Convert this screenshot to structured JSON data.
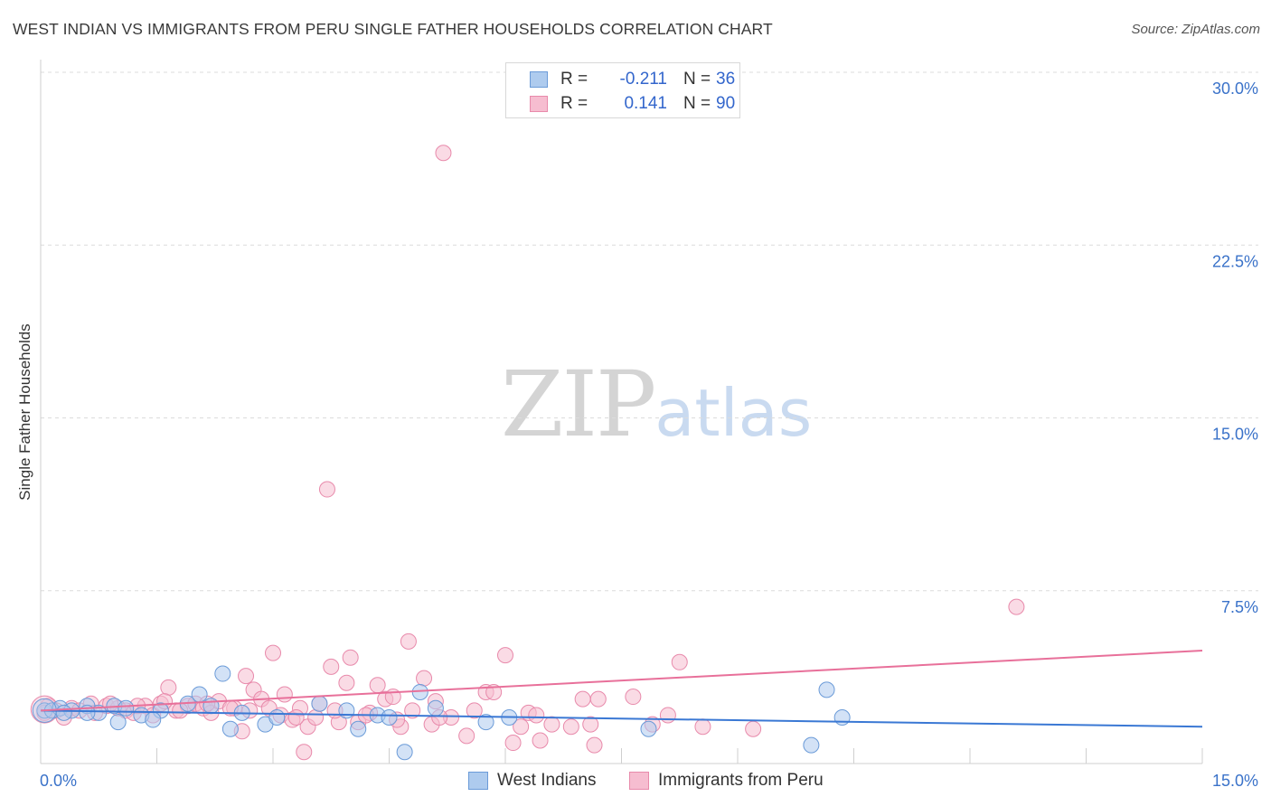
{
  "title": "WEST INDIAN VS IMMIGRANTS FROM PERU SINGLE FATHER HOUSEHOLDS CORRELATION CHART",
  "source": "Source: ZipAtlas.com",
  "watermark": {
    "zip": "ZIP",
    "atlas": "atlas"
  },
  "legend": {
    "rows": [
      {
        "r_label": "R =",
        "r_value": "-0.211",
        "n_label": "N =",
        "n_value": "36"
      },
      {
        "r_label": "R =",
        "r_value": "0.141",
        "n_label": "N =",
        "n_value": "90"
      }
    ]
  },
  "bottom_legend": [
    "West Indians",
    "Immigrants from Peru"
  ],
  "colors": {
    "blue_fill": "#aecbee",
    "blue_stroke": "#6b9bd8",
    "blue_line": "#3a78d4",
    "pink_fill": "#f6bdd0",
    "pink_stroke": "#e88aab",
    "pink_line": "#e8709a",
    "tick_label": "#3a72c9",
    "grid": "#dcdcdc"
  },
  "chart_data": {
    "type": "scatter",
    "title": "WEST INDIAN VS IMMIGRANTS FROM PERU SINGLE FATHER HOUSEHOLDS CORRELATION CHART",
    "xlabel": "",
    "ylabel": "Single Father Households",
    "xlim": [
      0,
      15
    ],
    "ylim": [
      0,
      30
    ],
    "x_tick_labels": [
      "0.0%",
      "15.0%"
    ],
    "y_ticks": [
      7.5,
      15,
      22.5,
      30
    ],
    "y_tick_labels": [
      "7.5%",
      "15.0%",
      "22.5%",
      "30.0%"
    ],
    "series": [
      {
        "name": "West Indians",
        "R": -0.211,
        "N": 36,
        "trend": {
          "x": [
            0,
            15
          ],
          "y": [
            2.3,
            1.6
          ]
        },
        "points": [
          [
            0.05,
            2.3
          ],
          [
            0.15,
            2.3
          ],
          [
            0.25,
            2.4
          ],
          [
            0.4,
            2.3
          ],
          [
            0.6,
            2.5
          ],
          [
            0.75,
            2.2
          ],
          [
            0.95,
            2.5
          ],
          [
            1.3,
            2.1
          ],
          [
            1.55,
            2.3
          ],
          [
            1.9,
            2.6
          ],
          [
            2.05,
            3.0
          ],
          [
            2.2,
            2.5
          ],
          [
            2.35,
            3.9
          ],
          [
            2.45,
            1.5
          ],
          [
            2.6,
            2.2
          ],
          [
            2.9,
            1.7
          ],
          [
            3.05,
            2.0
          ],
          [
            3.6,
            2.6
          ],
          [
            3.95,
            2.3
          ],
          [
            4.1,
            1.5
          ],
          [
            4.35,
            2.1
          ],
          [
            4.5,
            2.0
          ],
          [
            4.7,
            0.5
          ],
          [
            4.9,
            3.1
          ],
          [
            5.1,
            2.4
          ],
          [
            5.75,
            1.8
          ],
          [
            6.05,
            2.0
          ],
          [
            7.85,
            1.5
          ],
          [
            9.95,
            0.8
          ],
          [
            10.15,
            3.2
          ],
          [
            10.35,
            2.0
          ],
          [
            0.6,
            2.2
          ],
          [
            1.0,
            1.8
          ],
          [
            1.1,
            2.4
          ],
          [
            1.45,
            1.9
          ],
          [
            0.3,
            2.2
          ]
        ]
      },
      {
        "name": "Immigrants from Peru",
        "R": 0.141,
        "N": 90,
        "trend": {
          "x": [
            0,
            15
          ],
          "y": [
            2.3,
            4.9
          ]
        },
        "points": [
          [
            0.1,
            2.5
          ],
          [
            0.2,
            2.3
          ],
          [
            0.3,
            2.0
          ],
          [
            0.4,
            2.4
          ],
          [
            0.5,
            2.3
          ],
          [
            0.65,
            2.6
          ],
          [
            0.85,
            2.5
          ],
          [
            1.0,
            2.4
          ],
          [
            1.1,
            2.3
          ],
          [
            1.2,
            2.2
          ],
          [
            1.35,
            2.5
          ],
          [
            1.45,
            2.1
          ],
          [
            1.55,
            2.6
          ],
          [
            1.65,
            3.3
          ],
          [
            1.75,
            2.3
          ],
          [
            1.9,
            2.5
          ],
          [
            2.0,
            2.6
          ],
          [
            2.1,
            2.4
          ],
          [
            2.2,
            2.2
          ],
          [
            2.3,
            2.7
          ],
          [
            2.5,
            2.4
          ],
          [
            2.6,
            1.4
          ],
          [
            2.65,
            3.8
          ],
          [
            2.7,
            2.3
          ],
          [
            2.75,
            3.2
          ],
          [
            2.85,
            2.8
          ],
          [
            2.95,
            2.4
          ],
          [
            3.0,
            4.8
          ],
          [
            3.1,
            2.1
          ],
          [
            3.15,
            3.0
          ],
          [
            3.25,
            1.9
          ],
          [
            3.35,
            2.4
          ],
          [
            3.4,
            0.5
          ],
          [
            3.45,
            1.6
          ],
          [
            3.55,
            2.0
          ],
          [
            3.6,
            2.6
          ],
          [
            3.7,
            11.9
          ],
          [
            3.75,
            4.2
          ],
          [
            3.85,
            1.8
          ],
          [
            3.95,
            3.5
          ],
          [
            4.0,
            4.6
          ],
          [
            4.1,
            1.8
          ],
          [
            4.25,
            2.2
          ],
          [
            4.35,
            3.4
          ],
          [
            4.45,
            2.8
          ],
          [
            4.55,
            2.9
          ],
          [
            4.65,
            1.6
          ],
          [
            4.75,
            5.3
          ],
          [
            4.8,
            2.3
          ],
          [
            4.95,
            3.7
          ],
          [
            5.05,
            1.7
          ],
          [
            5.1,
            2.7
          ],
          [
            5.2,
            26.5
          ],
          [
            5.3,
            2.0
          ],
          [
            5.5,
            1.2
          ],
          [
            5.6,
            2.3
          ],
          [
            5.75,
            3.1
          ],
          [
            5.85,
            3.1
          ],
          [
            6.0,
            4.7
          ],
          [
            6.1,
            0.9
          ],
          [
            6.3,
            2.2
          ],
          [
            6.45,
            1.0
          ],
          [
            6.6,
            1.7
          ],
          [
            6.85,
            1.6
          ],
          [
            7.0,
            2.8
          ],
          [
            7.1,
            1.7
          ],
          [
            7.15,
            0.8
          ],
          [
            7.2,
            2.8
          ],
          [
            7.65,
            2.9
          ],
          [
            7.9,
            1.7
          ],
          [
            8.1,
            2.1
          ],
          [
            8.25,
            4.4
          ],
          [
            8.55,
            1.6
          ],
          [
            9.2,
            1.5
          ],
          [
            12.6,
            6.8
          ],
          [
            0.7,
            2.2
          ],
          [
            0.9,
            2.6
          ],
          [
            1.25,
            2.5
          ],
          [
            1.6,
            2.7
          ],
          [
            2.15,
            2.6
          ],
          [
            2.45,
            2.4
          ],
          [
            3.3,
            2.0
          ],
          [
            3.8,
            2.3
          ],
          [
            4.2,
            2.1
          ],
          [
            4.6,
            1.9
          ],
          [
            5.15,
            2.0
          ],
          [
            6.2,
            1.6
          ],
          [
            6.4,
            2.1
          ],
          [
            0.05,
            2.2
          ],
          [
            1.8,
            2.3
          ]
        ]
      }
    ]
  }
}
